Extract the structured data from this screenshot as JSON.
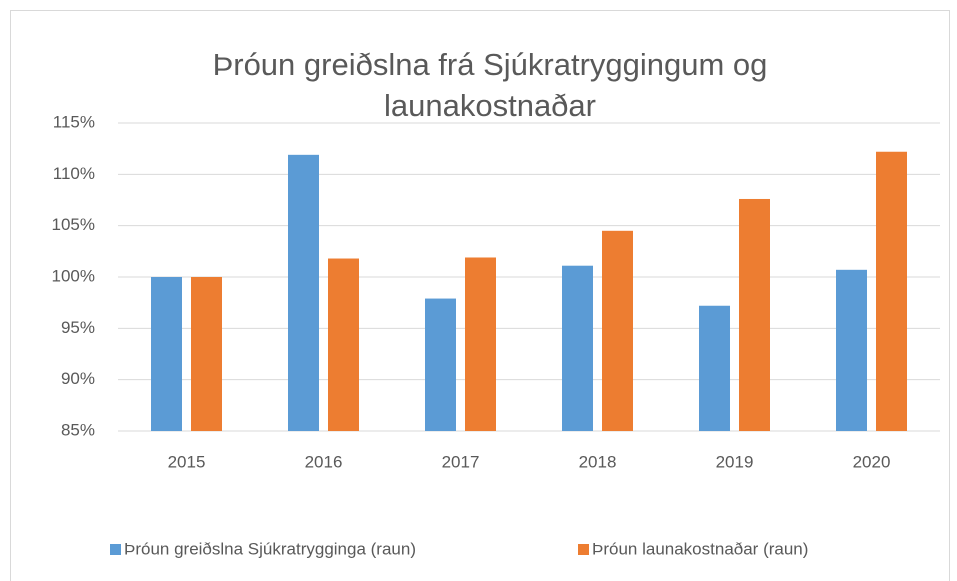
{
  "chart_data": {
    "type": "bar",
    "title": "Þróun greiðslna frá Sjúkratryggingum og launakostnaðar",
    "categories": [
      "2015",
      "2016",
      "2017",
      "2018",
      "2019",
      "2020"
    ],
    "series": [
      {
        "name": "Þróun greiðslna Sjúkratrygginga (raun)",
        "color": "#5b9bd5",
        "values": [
          100,
          111.9,
          97.9,
          101.1,
          97.2,
          100.7
        ]
      },
      {
        "name": "Þróun launakostnaðar (raun)",
        "color": "#ed7d31",
        "values": [
          100,
          101.8,
          101.9,
          104.5,
          107.6,
          112.2
        ]
      }
    ],
    "ylim": [
      85,
      115
    ],
    "yticks": [
      {
        "value": 85,
        "label": "85%"
      },
      {
        "value": 90,
        "label": "90%"
      },
      {
        "value": 95,
        "label": "95%"
      },
      {
        "value": 100,
        "label": "100%"
      },
      {
        "value": 105,
        "label": "105%"
      },
      {
        "value": 110,
        "label": "110%"
      },
      {
        "value": 115,
        "label": "115%"
      }
    ],
    "grid": true,
    "legend": "bottom"
  }
}
